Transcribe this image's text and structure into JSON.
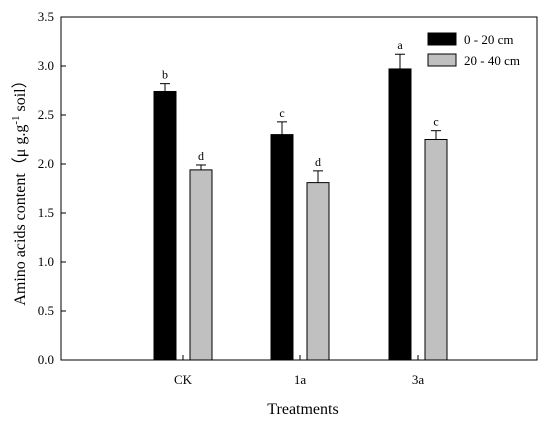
{
  "chart_data": {
    "type": "bar",
    "categories": [
      "CK",
      "1a",
      "3a"
    ],
    "series": [
      {
        "name": "0 - 20 cm",
        "color": "#000000",
        "values": [
          2.74,
          2.3,
          2.97
        ],
        "errors": [
          0.08,
          0.13,
          0.15
        ],
        "letters": [
          "b",
          "c",
          "a"
        ]
      },
      {
        "name": "20 - 40 cm",
        "color": "#c0c0c0",
        "values": [
          1.94,
          1.81,
          2.25
        ],
        "errors": [
          0.05,
          0.12,
          0.09
        ],
        "letters": [
          "d",
          "d",
          "c"
        ]
      }
    ],
    "xlabel": "Treatments",
    "ylabel_main": "Amino acids content（μ g.g",
    "ylabel_sup": "-1",
    "ylabel_end": " soil）",
    "ylim": [
      0.0,
      3.5
    ],
    "yticks": [
      "0.0",
      "0.5",
      "1.0",
      "1.5",
      "2.0",
      "2.5",
      "3.0",
      "3.5"
    ],
    "grid": false,
    "legend_position": "top-right"
  }
}
